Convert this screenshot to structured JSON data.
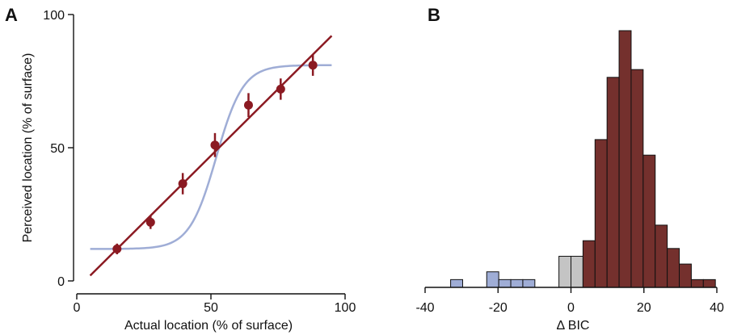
{
  "chart_data": [
    {
      "panel": "A",
      "type": "scatter",
      "xlabel": "Actual location (% of surface)",
      "ylabel": "Perceived location (% of surface)",
      "xlim": [
        0,
        100
      ],
      "ylim": [
        0,
        100
      ],
      "xticks": [
        "0",
        "50",
        "100"
      ],
      "yticks": [
        "0",
        "50",
        "100"
      ],
      "points": {
        "x": [
          15,
          27.5,
          39.5,
          51.5,
          64,
          76,
          88
        ],
        "y": [
          12,
          22,
          36.5,
          51,
          66,
          72,
          81
        ],
        "err": [
          2,
          2.5,
          4,
          4.5,
          4.5,
          4,
          4
        ]
      },
      "linear_fit": {
        "x": [
          5,
          95
        ],
        "y": [
          2,
          92
        ]
      },
      "sigmoid_fit": {
        "x_range": [
          5,
          95
        ],
        "lower": 12,
        "upper": 81,
        "midpoint": 52,
        "slope": 0.2
      },
      "colors": {
        "points": "#8b1a22",
        "linear": "#8b1a22",
        "sigmoid": "#9fadd6"
      }
    },
    {
      "panel": "B",
      "type": "bar",
      "xlabel": "Δ BIC",
      "xlim": [
        -40,
        40
      ],
      "xticks": [
        "-40",
        "-20",
        "0",
        "20",
        "40"
      ],
      "bin_width": 3.3,
      "bins": [
        {
          "x0": -33,
          "count": 1,
          "color": "blue"
        },
        {
          "x0": -23.1,
          "count": 2,
          "color": "blue"
        },
        {
          "x0": -19.8,
          "count": 1,
          "color": "blue"
        },
        {
          "x0": -16.5,
          "count": 1,
          "color": "blue"
        },
        {
          "x0": -13.2,
          "count": 1,
          "color": "blue"
        },
        {
          "x0": -3.3,
          "count": 4,
          "color": "gray"
        },
        {
          "x0": 0,
          "count": 4,
          "color": "gray"
        },
        {
          "x0": 3.3,
          "count": 6,
          "color": "red"
        },
        {
          "x0": 6.6,
          "count": 19,
          "color": "red"
        },
        {
          "x0": 9.9,
          "count": 27,
          "color": "red"
        },
        {
          "x0": 13.2,
          "count": 33,
          "color": "red"
        },
        {
          "x0": 16.5,
          "count": 28,
          "color": "red"
        },
        {
          "x0": 19.8,
          "count": 17,
          "color": "red"
        },
        {
          "x0": 23.1,
          "count": 8,
          "color": "red"
        },
        {
          "x0": 26.4,
          "count": 5,
          "color": "red"
        },
        {
          "x0": 29.7,
          "count": 3,
          "color": "red"
        },
        {
          "x0": 33,
          "count": 1,
          "color": "red"
        },
        {
          "x0": 36.3,
          "count": 1,
          "color": "red"
        }
      ],
      "count_max": 33,
      "colors": {
        "blue": "#9fadd6",
        "gray": "#c4c4c4",
        "red": "#74302d",
        "edge": "#111111"
      }
    }
  ]
}
